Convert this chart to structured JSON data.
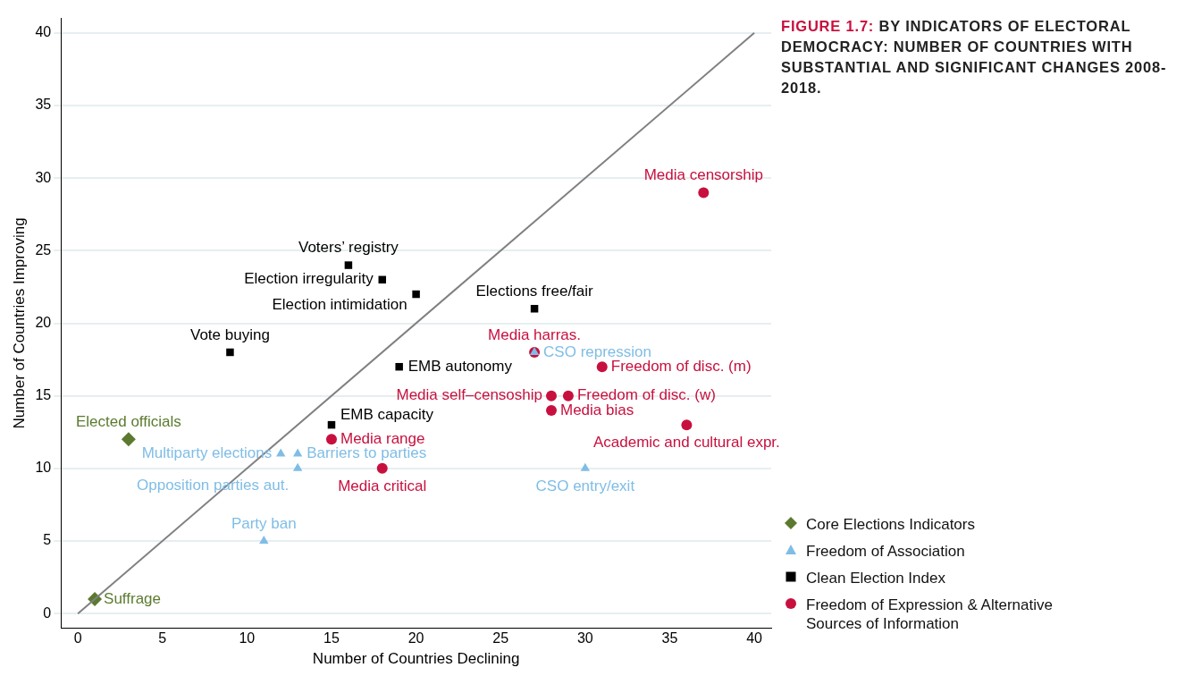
{
  "chart_data": {
    "type": "scatter",
    "title": "FIGURE 1.7: BY INDICATORS OF ELECTORAL DEMOCRACY: NUMBER OF COUNTRIES WITH SUBSTANTIAL AND SIGNIFICANT CHANGES 2008-2018.",
    "xlabel": "Number of Countries Declining",
    "ylabel": "Number of Countries Improving",
    "xlim": [
      -1,
      41
    ],
    "ylim": [
      -1,
      41
    ],
    "xticks": [
      0,
      5,
      10,
      15,
      20,
      25,
      30,
      35,
      40
    ],
    "yticks": [
      0,
      5,
      10,
      15,
      20,
      25,
      30,
      35,
      40
    ],
    "grid": "y",
    "legend": "bottom right",
    "series": [
      {
        "type": "line",
        "color": "#808080",
        "x": [
          0,
          40
        ],
        "values": [
          0,
          40
        ]
      },
      {
        "name": "Core Elections Indicators",
        "color": "#5b7a2f",
        "marker": "diamond",
        "x": [
          3,
          1
        ],
        "values": [
          12,
          1
        ],
        "value_labels": [
          "Elected officials",
          "Suffrage"
        ]
      },
      {
        "name": "Freedom of Association",
        "color": "#7fbde6",
        "marker": "triangle",
        "x": [
          12,
          13,
          13,
          11,
          27,
          30
        ],
        "values": [
          11,
          11,
          10,
          5,
          18,
          10
        ],
        "value_labels": [
          "Multiparty elections",
          "Barriers to parties",
          "Opposition parties aut.",
          "Party ban",
          "CSO repression",
          "CSO entry/exit"
        ]
      },
      {
        "name": "Clean Election Index",
        "color": "#000000",
        "marker": "square",
        "x": [
          16,
          18,
          20,
          27,
          9,
          19,
          15
        ],
        "values": [
          24,
          23,
          22,
          21,
          18,
          17,
          13
        ],
        "value_labels": [
          "Voters’ registry",
          "Election irregularity",
          "Election intimidation",
          "Elections free/fair",
          "Vote buying",
          "EMB autonomy",
          "EMB capacity"
        ]
      },
      {
        "name": "Freedom of Expression & Alternative Sources of Information",
        "color": "#c8103e",
        "marker": "circle",
        "x": [
          37,
          27,
          31,
          28,
          29,
          28,
          36,
          15,
          18
        ],
        "values": [
          29,
          18,
          17,
          15,
          15,
          14,
          13,
          12,
          10
        ],
        "value_labels": [
          "Media censorship",
          "Media harras.",
          "Freedom of disc. (m)",
          "Media self–censoship",
          "Freedom of disc. (w)",
          "Media bias",
          "Academic and cultural expr.",
          "Media range",
          "Media critical"
        ]
      }
    ]
  }
}
